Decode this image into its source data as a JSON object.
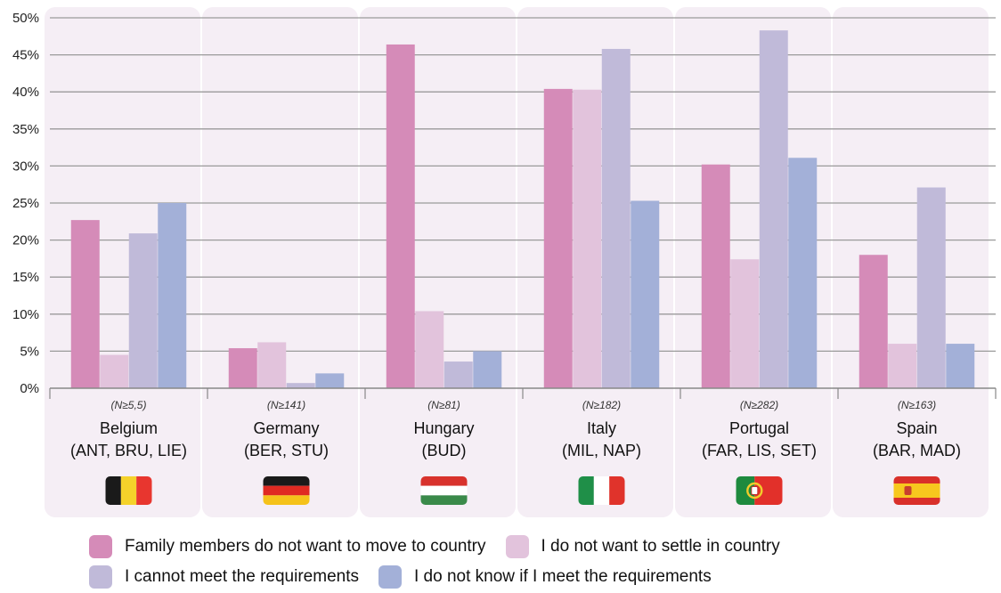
{
  "chart_data": {
    "type": "bar",
    "title": "",
    "xlabel": "",
    "ylabel": "",
    "ylim": [
      0,
      50
    ],
    "yticks": [
      "0%",
      "5%",
      "10%",
      "15%",
      "20%",
      "25%",
      "30%",
      "35%",
      "40%",
      "45%",
      "50%"
    ],
    "grid": true,
    "legend_position": "bottom",
    "categories": [
      {
        "name": "Belgium",
        "cities": "(ANT, BRU, LIE)",
        "n": "(N≥5,5)",
        "flag": "belgium-flag",
        "shaded": true
      },
      {
        "name": "Germany",
        "cities": "(BER, STU)",
        "n": "(N≥141)",
        "flag": "germany-flag",
        "shaded": true
      },
      {
        "name": "Hungary",
        "cities": "(BUD)",
        "n": "(N≥81)",
        "flag": "hungary-flag",
        "shaded": true
      },
      {
        "name": "Italy",
        "cities": "(MIL, NAP)",
        "n": "(N≥182)",
        "flag": "italy-flag",
        "shaded": true
      },
      {
        "name": "Portugal",
        "cities": "(FAR, LIS, SET)",
        "n": "(N≥282)",
        "flag": "portugal-flag",
        "shaded": true
      },
      {
        "name": "Spain",
        "cities": "(BAR, MAD)",
        "n": "(N≥163)",
        "flag": "spain-flag",
        "shaded": true
      }
    ],
    "series": [
      {
        "name": "Family members do not want to move to country",
        "color": "#d58bb8",
        "values": [
          22.7,
          5.4,
          46.4,
          40.4,
          30.2,
          18.0
        ]
      },
      {
        "name": "I do not want to settle in country",
        "color": "#e2c3dc",
        "values": [
          4.5,
          6.2,
          10.4,
          40.3,
          17.4,
          6.0
        ]
      },
      {
        "name": "I cannot meet the requirements",
        "color": "#c0bad9",
        "values": [
          20.9,
          0.7,
          3.6,
          45.8,
          48.3,
          27.1
        ]
      },
      {
        "name": "I do not know if I meet the requirements",
        "color": "#a3b0d8",
        "values": [
          25.0,
          2.0,
          5.0,
          25.3,
          31.1,
          6.0
        ]
      }
    ]
  }
}
